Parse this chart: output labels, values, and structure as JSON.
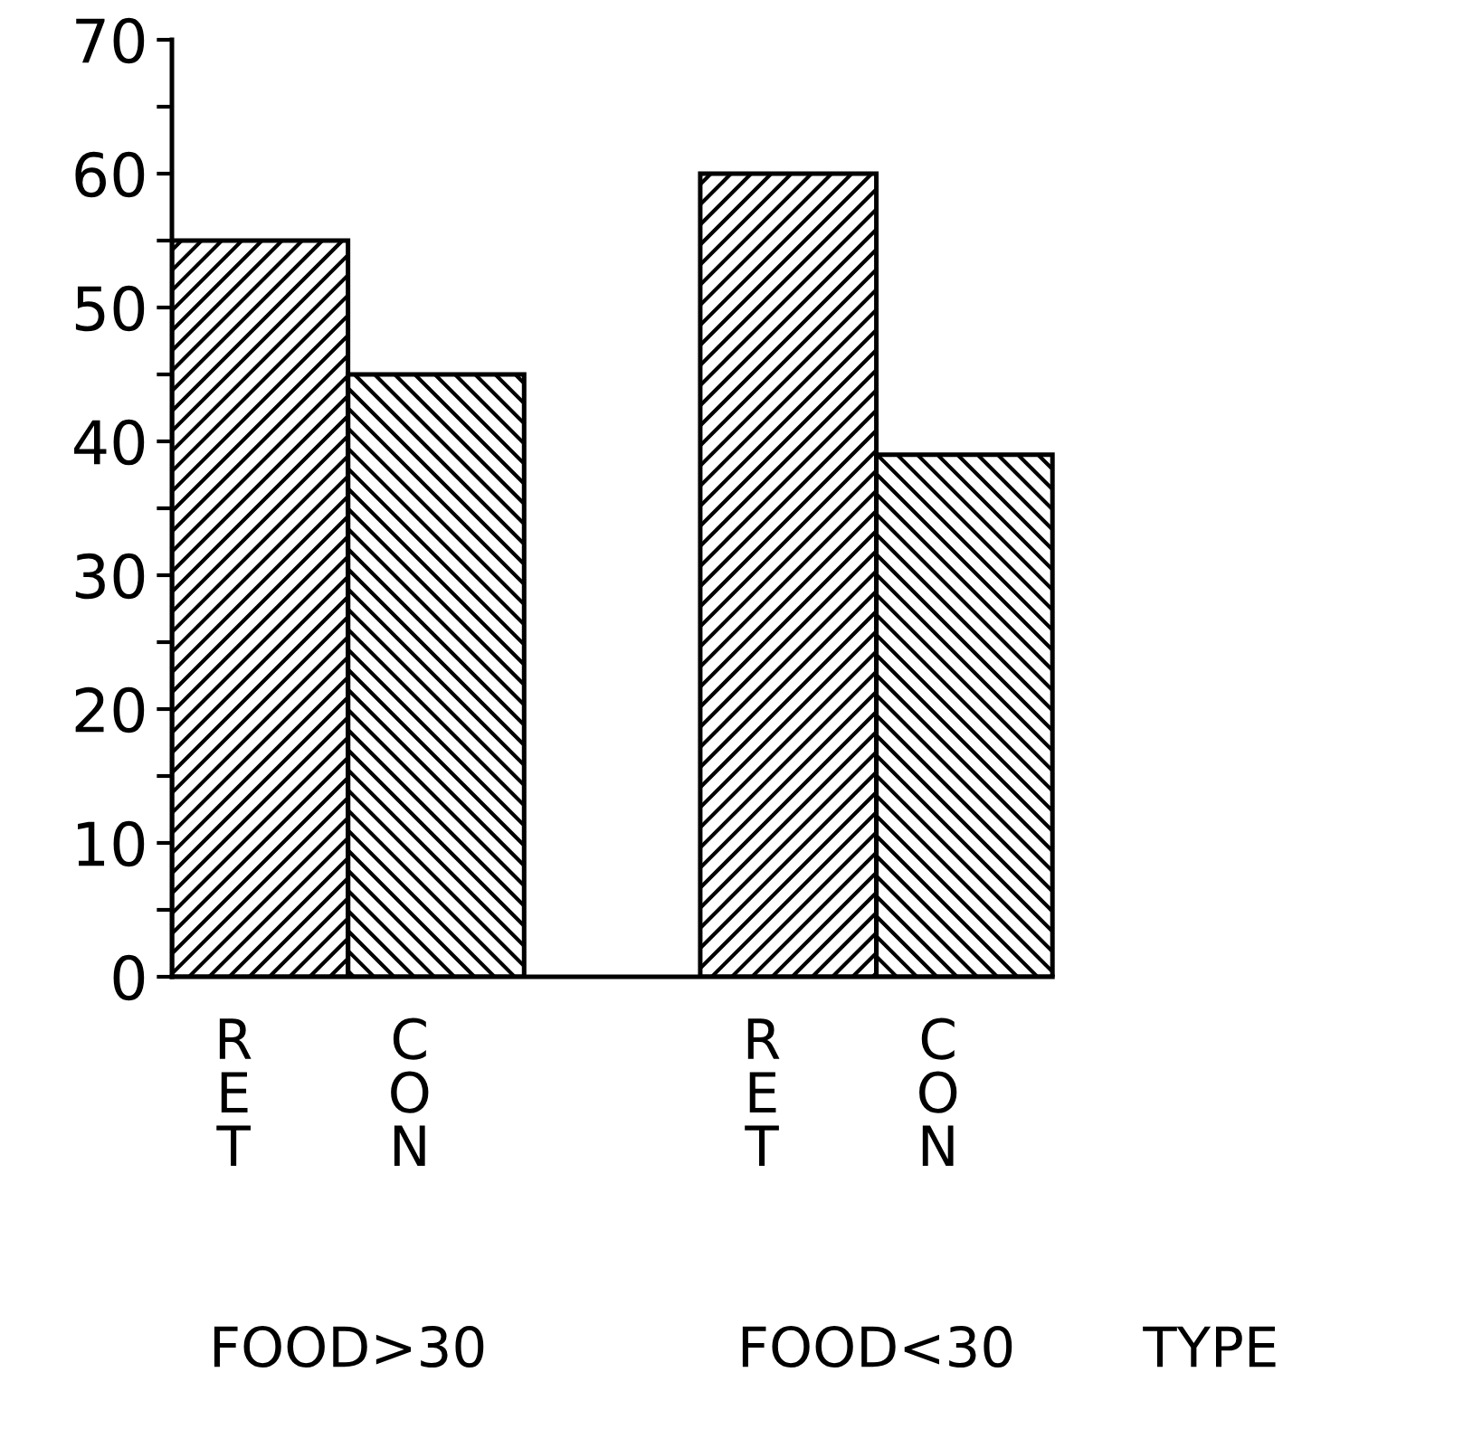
{
  "chart_data": {
    "type": "bar",
    "categories": [
      "RET",
      "CON",
      null,
      "RET",
      "CON"
    ],
    "values": [
      55,
      45,
      null,
      60,
      39
    ],
    "color": "#000000",
    "ylim": [
      0,
      70
    ],
    "yticks": [
      0,
      {
        "value": 5,
        "label": null
      },
      10,
      {
        "value": 15,
        "label": null
      },
      20,
      {
        "value": 25,
        "label": null
      },
      30,
      {
        "value": 35,
        "label": null
      },
      40,
      {
        "value": 45,
        "label": null
      },
      50,
      {
        "value": 55,
        "label": null
      },
      60,
      {
        "value": 65,
        "label": null
      },
      70
    ],
    "grid": false,
    "legend": false,
    "annotations": [
      "FOOD>30",
      "FOOD<30",
      "TYPE"
    ]
  }
}
